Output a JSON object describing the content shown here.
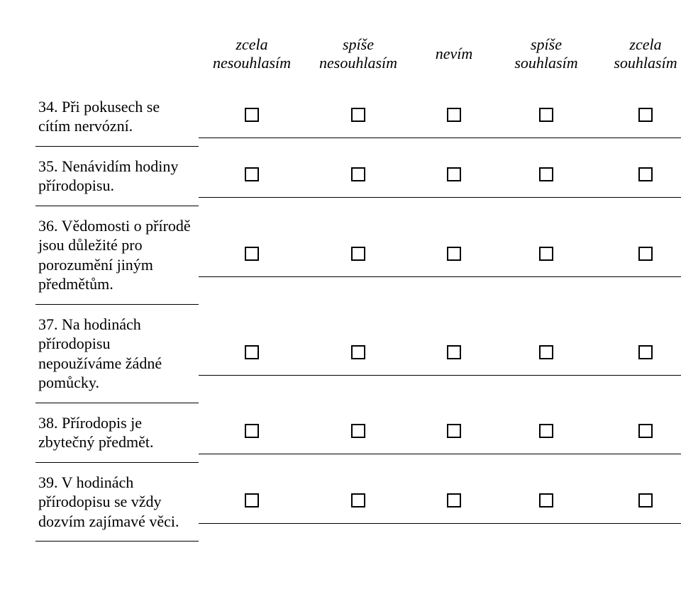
{
  "headers": {
    "col1": "zcela nesouhlasím",
    "col2": "spíše nesouhlasím",
    "col3": "nevím",
    "col4": "spíše souhlasím",
    "col5": "zcela souhlasím"
  },
  "questions": {
    "q34": "34. Při pokusech se cítím nervózní.",
    "q35": "35. Nenávidím hodiny přírodopisu.",
    "q36": "36. Vědomosti o přírodě jsou důležité pro porozumění jiným předmětům.",
    "q37": "37. Na hodinách přírodopisu nepoužíváme žádné pomůcky.",
    "q38": "38. Přírodopis je zbytečný předmět.",
    "q39": "39. V hodinách přírodopisu se vždy dozvím zajímavé věci."
  }
}
